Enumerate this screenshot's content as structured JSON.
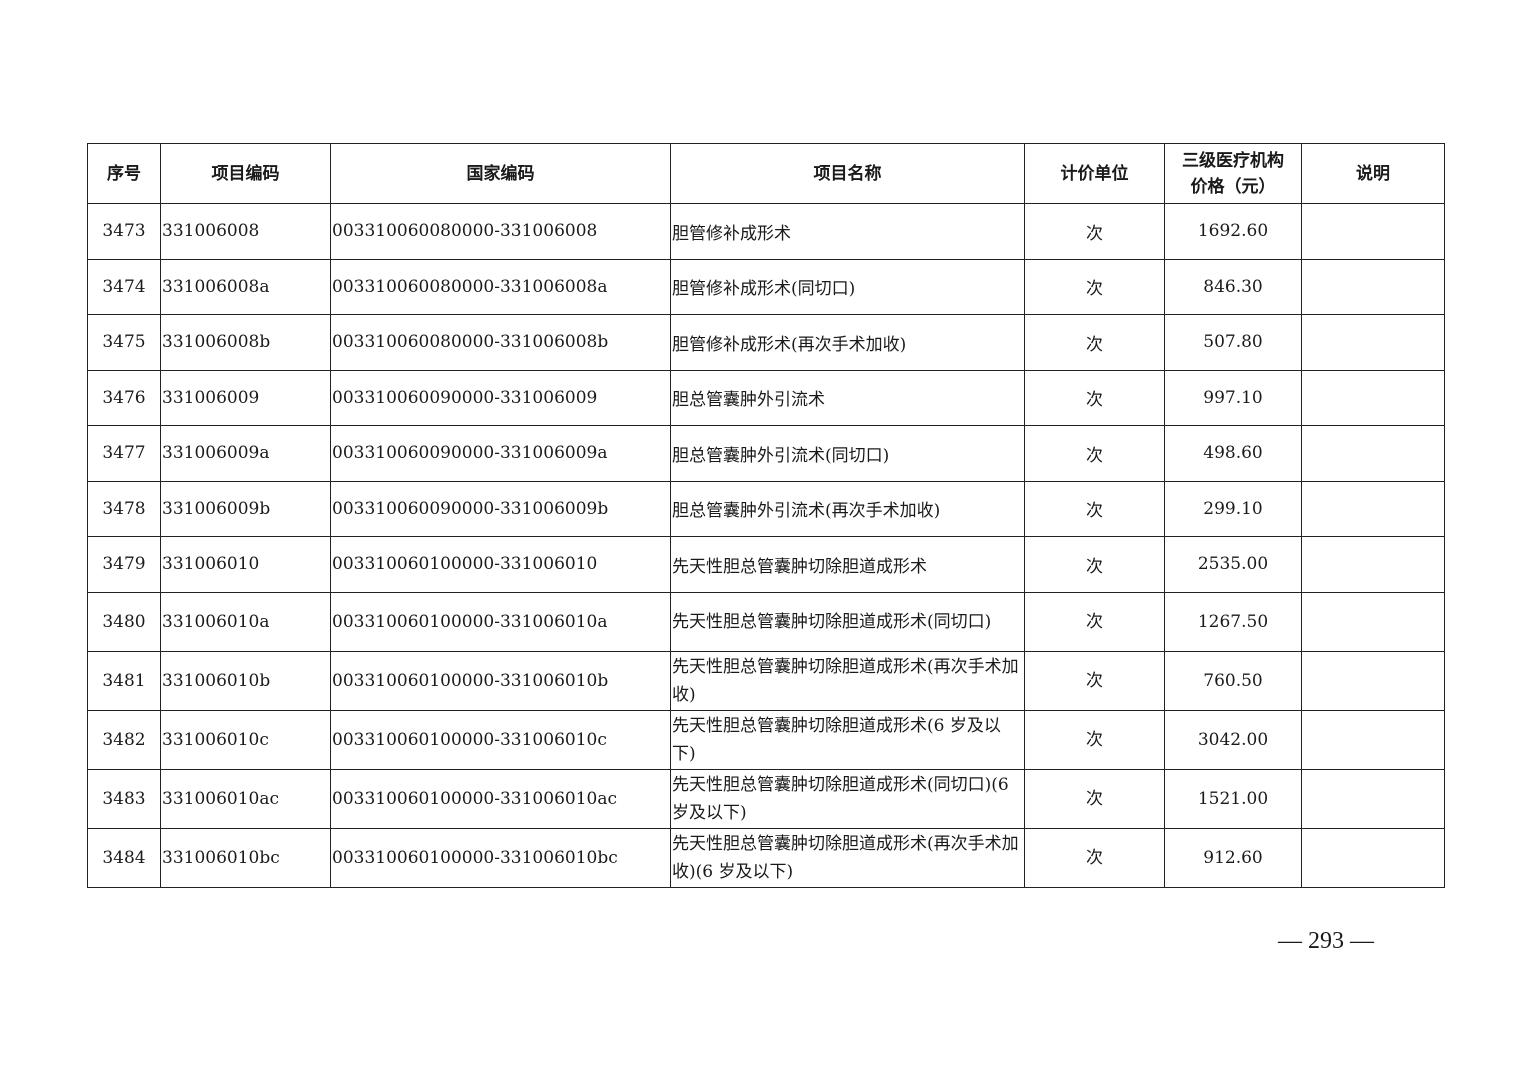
{
  "table": {
    "headers": [
      "序号",
      "项目编码",
      "国家编码",
      "项目名称",
      "计价单位",
      "三级医疗机构价格（元）",
      "说明"
    ],
    "rows": [
      {
        "no": "3473",
        "code": "331006008",
        "national_code": "003310060080000-331006008",
        "name": "胆管修补成形术",
        "unit": "次",
        "price": "1692.60",
        "note": ""
      },
      {
        "no": "3474",
        "code": "331006008a",
        "national_code": "003310060080000-331006008a",
        "name": "胆管修补成形术(同切口)",
        "unit": "次",
        "price": "846.30",
        "note": ""
      },
      {
        "no": "3475",
        "code": "331006008b",
        "national_code": "003310060080000-331006008b",
        "name": "胆管修补成形术(再次手术加收)",
        "unit": "次",
        "price": "507.80",
        "note": ""
      },
      {
        "no": "3476",
        "code": "331006009",
        "national_code": "003310060090000-331006009",
        "name": "胆总管囊肿外引流术",
        "unit": "次",
        "price": "997.10",
        "note": ""
      },
      {
        "no": "3477",
        "code": "331006009a",
        "national_code": "003310060090000-331006009a",
        "name": "胆总管囊肿外引流术(同切口)",
        "unit": "次",
        "price": "498.60",
        "note": ""
      },
      {
        "no": "3478",
        "code": "331006009b",
        "national_code": "003310060090000-331006009b",
        "name": "胆总管囊肿外引流术(再次手术加收)",
        "unit": "次",
        "price": "299.10",
        "note": ""
      },
      {
        "no": "3479",
        "code": "331006010",
        "national_code": "003310060100000-331006010",
        "name": "先天性胆总管囊肿切除胆道成形术",
        "unit": "次",
        "price": "2535.00",
        "note": ""
      },
      {
        "no": "3480",
        "code": "331006010a",
        "national_code": "003310060100000-331006010a",
        "name": "先天性胆总管囊肿切除胆道成形术(同切口)",
        "unit": "次",
        "price": "1267.50",
        "note": ""
      },
      {
        "no": "3481",
        "code": "331006010b",
        "national_code": "003310060100000-331006010b",
        "name": "先天性胆总管囊肿切除胆道成形术(再次手术加收)",
        "unit": "次",
        "price": "760.50",
        "note": ""
      },
      {
        "no": "3482",
        "code": "331006010c",
        "national_code": "003310060100000-331006010c",
        "name": "先天性胆总管囊肿切除胆道成形术(6 岁及以下)",
        "unit": "次",
        "price": "3042.00",
        "note": ""
      },
      {
        "no": "3483",
        "code": "331006010ac",
        "national_code": "003310060100000-331006010ac",
        "name": "先天性胆总管囊肿切除胆道成形术(同切口)(6 岁及以下)",
        "unit": "次",
        "price": "1521.00",
        "note": ""
      },
      {
        "no": "3484",
        "code": "331006010bc",
        "national_code": "003310060100000-331006010bc",
        "name": "先天性胆总管囊肿切除胆道成形术(再次手术加收)(6 岁及以下)",
        "unit": "次",
        "price": "912.60",
        "note": ""
      }
    ]
  },
  "page_number": "— 293 —"
}
